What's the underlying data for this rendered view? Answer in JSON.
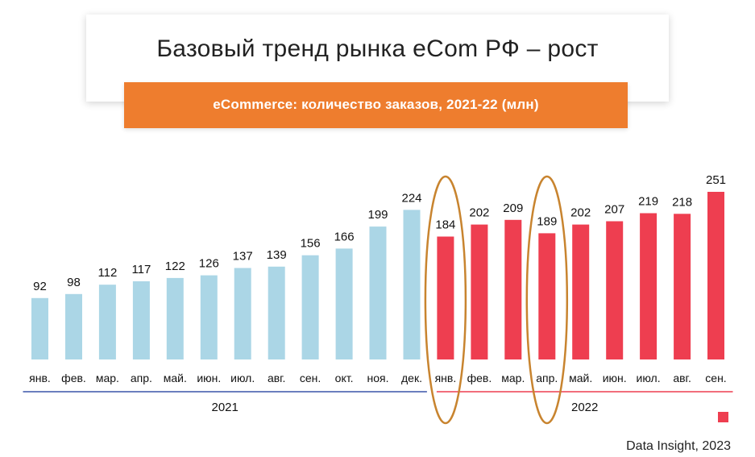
{
  "header": {
    "title": "Базовый тренд рынка eCom РФ – рост",
    "subtitle": "eCommerce: количество заказов, 2021-22 (млн)"
  },
  "source": "Data Insight, 2023",
  "colors": {
    "y2021": "#abd6e6",
    "y2022": "#ee3e50",
    "accent": "#ee7d2e",
    "highlight": "#c8842f",
    "line2021": "#3a55a8",
    "line2022": "#ee3e50"
  },
  "chart_data": {
    "type": "bar",
    "title": "eCommerce: количество заказов, 2021-22 (млн)",
    "categories": [
      "янв.",
      "фев.",
      "мар.",
      "апр.",
      "май.",
      "июн.",
      "июл.",
      "авг.",
      "сен.",
      "окт.",
      "ноя.",
      "дек.",
      "янв.",
      "фев.",
      "мар.",
      "апр.",
      "май.",
      "июн.",
      "июл.",
      "авг.",
      "сен."
    ],
    "values": [
      92,
      98,
      112,
      117,
      122,
      126,
      137,
      139,
      156,
      166,
      199,
      224,
      184,
      202,
      209,
      189,
      202,
      207,
      219,
      218,
      251
    ],
    "groups": [
      {
        "name": "2021",
        "start": 0,
        "end": 11
      },
      {
        "name": "2022",
        "start": 12,
        "end": 20
      }
    ],
    "highlighted": [
      12,
      15
    ],
    "ylim": [
      0,
      251
    ],
    "xlabel": "",
    "ylabel": "",
    "grid": false,
    "legend": "none"
  }
}
